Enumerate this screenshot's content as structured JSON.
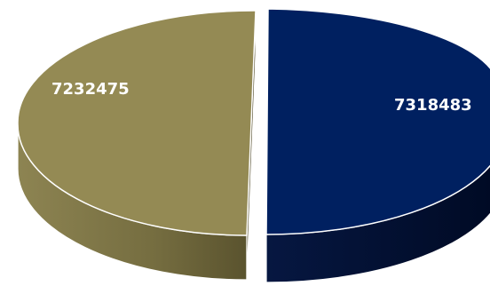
{
  "chart_data": {
    "type": "pie",
    "style": "3d-exploded",
    "title": "",
    "slices": [
      {
        "value": 7318483,
        "label": "7318483",
        "color": "#002060"
      },
      {
        "value": 7232475,
        "label": "7232475",
        "color": "#948A54"
      }
    ],
    "legend": "none"
  }
}
